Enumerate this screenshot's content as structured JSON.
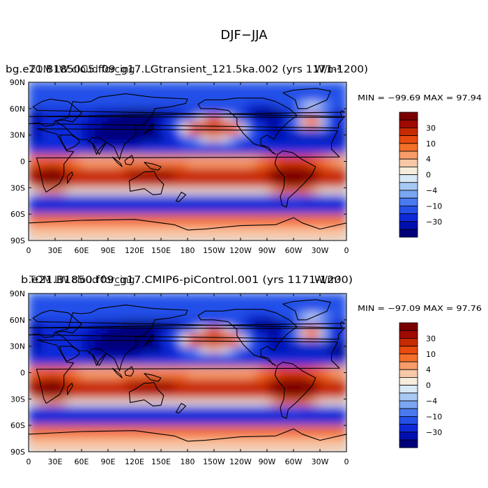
{
  "main_title": "DJF−JJA",
  "panels": [
    {
      "overlap_title_a": "bg.e21.B1850C5.f09_g17.LGtransient_121.5ka.002 (yrs 1171-1200)",
      "overlap_title_b": "TOM LW cloud forcing",
      "units": "W/m²",
      "stats": "MIN = −99.69  MAX =  97.94"
    },
    {
      "overlap_title_a": "b.e21.B1850.f09_g17.CMIP6-piControl.001 (yrs 1171-1200)",
      "overlap_title_b": "TOM LW cloud forcing",
      "units": "W/m²",
      "stats": "MIN = −97.09  MAX =  97.76"
    }
  ],
  "chart_data": [
    {
      "type": "heatmap",
      "title": "bg.e21.B1850C5.f09_g17.LGtransient_121.5ka.002 (yrs 1171-1200)",
      "field": "TOM LW cloud forcing",
      "units": "W/m²",
      "season_difference": "DJF−JJA",
      "min": -99.69,
      "max": 97.94,
      "x_ticks": [
        "0",
        "30E",
        "60E",
        "90E",
        "120E",
        "150E",
        "180",
        "150W",
        "120W",
        "90W",
        "60W",
        "30W",
        "0"
      ],
      "y_ticks": [
        "90N",
        "60N",
        "30N",
        "0",
        "30S",
        "60S",
        "90S"
      ],
      "xlim": [
        0,
        360
      ],
      "ylim": [
        -90,
        90
      ],
      "colorbar_labels": [
        "30",
        "10",
        "4",
        "0",
        "−4",
        "−10",
        "−30"
      ]
    },
    {
      "type": "heatmap",
      "title": "b.e21.B1850.f09_g17.CMIP6-piControl.001 (yrs 1171-1200)",
      "field": "TOM LW cloud forcing",
      "units": "W/m²",
      "season_difference": "DJF−JJA",
      "min": -97.09,
      "max": 97.76,
      "x_ticks": [
        "0",
        "30E",
        "60E",
        "90E",
        "120E",
        "150E",
        "180",
        "150W",
        "120W",
        "90W",
        "60W",
        "30W",
        "0"
      ],
      "y_ticks": [
        "90N",
        "60N",
        "30N",
        "0",
        "30S",
        "60S",
        "90S"
      ],
      "xlim": [
        0,
        360
      ],
      "ylim": [
        -90,
        90
      ],
      "colorbar_labels": [
        "30",
        "10",
        "4",
        "0",
        "−4",
        "−10",
        "−30"
      ]
    }
  ],
  "palette": [
    "#7a0000",
    "#a00a00",
    "#c82a00",
    "#e84a10",
    "#f4702a",
    "#f89c6a",
    "#f8c8a6",
    "#f6ecdc",
    "#d8e8f6",
    "#a8c8f4",
    "#7aa6f2",
    "#4a7af0",
    "#2450e8",
    "#0e2ad8",
    "#0010b0",
    "#00007a"
  ]
}
